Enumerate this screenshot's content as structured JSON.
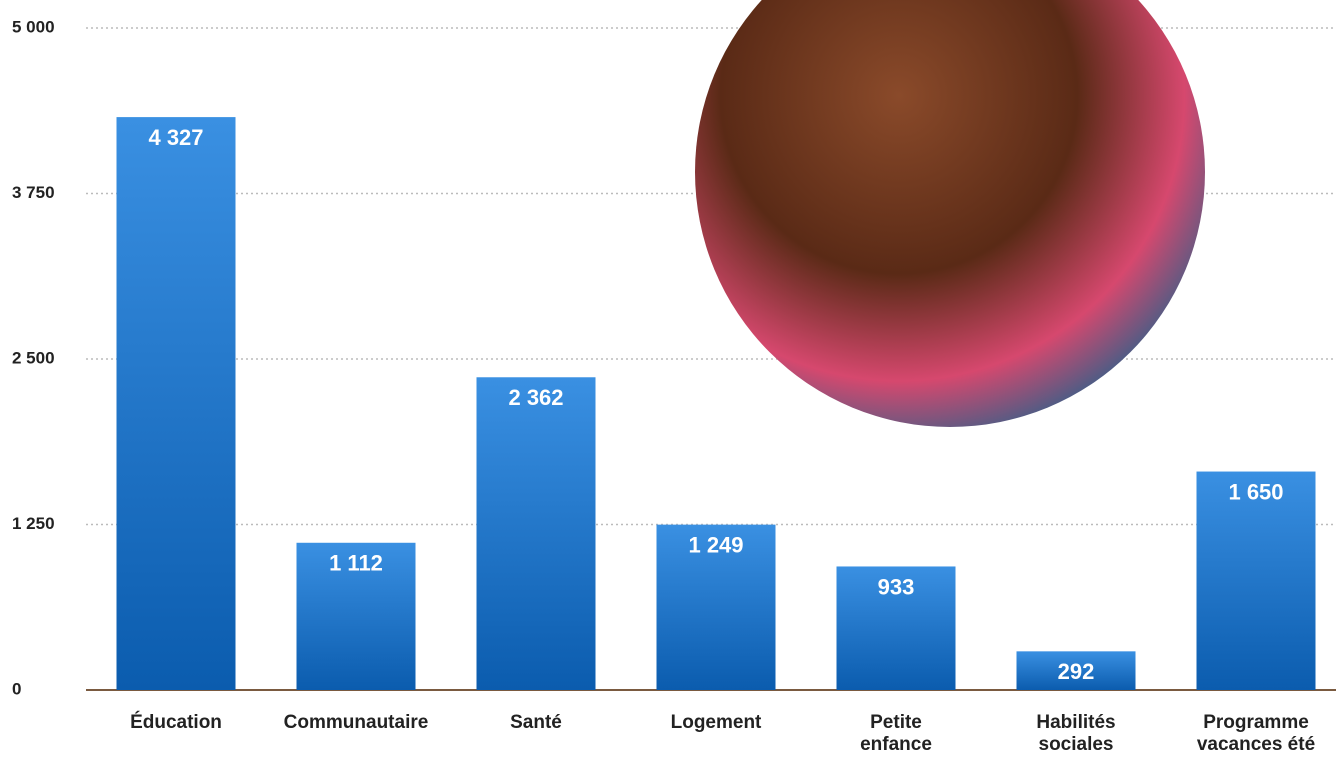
{
  "chart_data": {
    "type": "bar",
    "categories": [
      "Éducation",
      "Communautaire",
      "Santé",
      "Logement",
      "Petite enfance",
      "Habilités sociales",
      "Programme vacances été"
    ],
    "values": [
      4327,
      1112,
      2362,
      1249,
      933,
      292,
      1650
    ],
    "value_labels": [
      "4 327",
      "1 112",
      "2 362",
      "1 249",
      "933",
      "292",
      "1 650"
    ],
    "color": "#1a72c8",
    "ylim": [
      0,
      5000
    ],
    "yticks": [
      0,
      {
        "value": 1250,
        "label": "1 250"
      },
      {
        "value": 2500,
        "label": "2 500"
      },
      {
        "value": 3750,
        "label": "3 750"
      },
      {
        "value": 5000,
        "label": "5 000"
      }
    ],
    "grid": true
  }
}
